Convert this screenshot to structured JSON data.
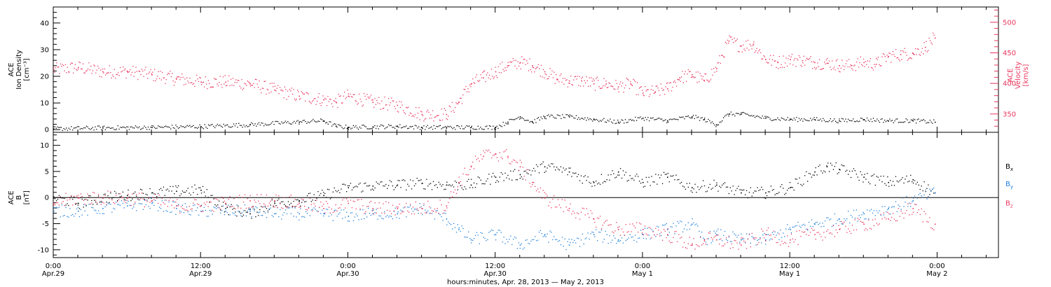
{
  "colors": {
    "black": "#000000",
    "red": "#e8365e",
    "blue": "#1f7fd9"
  },
  "footer_label": "hours:minutes, Apr. 28, 2013 — May  2, 2013",
  "x_ticks": [
    {
      "hour": 0,
      "l1": "0:00",
      "l2": "Apr.29"
    },
    {
      "hour": 12,
      "l1": "12:00",
      "l2": "Apr.29"
    },
    {
      "hour": 24,
      "l1": "0:00",
      "l2": "Apr.30"
    },
    {
      "hour": 36,
      "l1": "12:00",
      "l2": "Apr.30"
    },
    {
      "hour": 48,
      "l1": "0:00",
      "l2": "May 1"
    },
    {
      "hour": 60,
      "l1": "12:00",
      "l2": "May 1"
    },
    {
      "hour": 72,
      "l1": "0:00",
      "l2": "May 2"
    }
  ],
  "chart_data": [
    {
      "type": "scatter",
      "xlim": [
        0,
        77
      ],
      "top": {
        "ylabel_lines": [
          "ACE",
          "Ion Density",
          "[cm⁻³]"
        ],
        "ylim": [
          -1,
          46
        ],
        "yticks": [
          0,
          10,
          20,
          30,
          40
        ],
        "y2label_lines": [
          "ACE",
          "Velocity",
          "[km/s]"
        ],
        "y2lim": [
          320,
          525
        ],
        "y2ticks": [
          350,
          400,
          450,
          500
        ],
        "density_series": {
          "color": "black",
          "x": [
            0,
            4,
            8,
            12,
            16,
            20,
            22,
            23,
            24,
            26,
            28,
            30,
            32,
            34,
            36,
            37,
            38,
            39,
            40,
            42,
            44,
            46,
            48,
            50,
            52,
            53,
            54,
            55,
            56,
            58,
            60,
            62,
            64,
            66,
            68,
            70,
            71.8
          ],
          "y": [
            0.5,
            0.8,
            1,
            1.3,
            2,
            3,
            3.5,
            1.5,
            1,
            1.2,
            1.4,
            1,
            1,
            1,
            1,
            3,
            5,
            3,
            5,
            5,
            4,
            3,
            4.5,
            3.5,
            5,
            4,
            2,
            6,
            6,
            4.5,
            4,
            4,
            3.5,
            4,
            3.5,
            3.5,
            3
          ]
        },
        "velocity_series": {
          "color": "red",
          "x": [
            0,
            2,
            4,
            6,
            8,
            10,
            12,
            14,
            16,
            18,
            20,
            22,
            23,
            24,
            26,
            28,
            30,
            32,
            33,
            34,
            35,
            36,
            37,
            38,
            39,
            40,
            41,
            42,
            43,
            44,
            45,
            46,
            47,
            48,
            49,
            50,
            51,
            52,
            53,
            54,
            55,
            56,
            57,
            58,
            59,
            60,
            61,
            62,
            63,
            64,
            65,
            66,
            67,
            68,
            69,
            70,
            71,
            71.8
          ],
          "y": [
            423,
            427,
            420,
            420,
            415,
            408,
            403,
            403,
            400,
            390,
            380,
            374,
            370,
            380,
            370,
            365,
            350,
            350,
            370,
            400,
            410,
            420,
            430,
            435,
            430,
            420,
            408,
            405,
            405,
            400,
            400,
            395,
            400,
            385,
            387,
            392,
            410,
            415,
            405,
            425,
            470,
            462,
            465,
            440,
            435,
            440,
            438,
            435,
            434,
            430,
            430,
            435,
            432,
            445,
            448,
            450,
            460,
            475
          ]
        }
      },
      "bottom": {
        "ylabel_lines": [
          "ACE",
          "B",
          "[nT]"
        ],
        "ylim": [
          -11.5,
          12.5
        ],
        "yticks": [
          -10,
          -5,
          0,
          5,
          10
        ],
        "series": [
          {
            "name": "Bx",
            "label_main": "B",
            "label_sub": "x",
            "color": "black",
            "x": [
              0,
              2,
              4,
              6,
              8,
              10,
              12,
              14,
              16,
              18,
              20,
              22,
              24,
              26,
              28,
              30,
              32,
              34,
              36,
              38,
              40,
              42,
              44,
              46,
              48,
              50,
              52,
              54,
              56,
              58,
              60,
              62,
              63,
              64,
              66,
              68,
              70,
              71.8
            ],
            "y": [
              0,
              -1,
              0,
              0.5,
              1,
              1.3,
              1.5,
              -2,
              -3,
              -1,
              -0.5,
              0.5,
              2,
              2.3,
              2.5,
              2.8,
              2.5,
              2.5,
              4,
              4.5,
              6,
              5,
              3,
              5,
              3,
              4,
              2,
              2.5,
              1,
              1,
              2,
              5,
              6,
              5.5,
              4,
              3,
              3.5,
              1
            ]
          },
          {
            "name": "By",
            "label_main": "B",
            "label_sub": "y",
            "color": "blue",
            "x": [
              0,
              2,
              4,
              6,
              8,
              10,
              12,
              14,
              16,
              18,
              20,
              22,
              24,
              26,
              28,
              30,
              32,
              33,
              34,
              36,
              38,
              40,
              42,
              44,
              46,
              48,
              50,
              52,
              53,
              54,
              56,
              58,
              60,
              62,
              64,
              66,
              68,
              70,
              71.8
            ],
            "y": [
              -2.5,
              -2.5,
              -2,
              -1.5,
              -1,
              -2,
              -2.5,
              -2.5,
              -2.5,
              -3,
              -3,
              -3,
              -3.5,
              -3,
              -3,
              -2,
              -4,
              -6,
              -8,
              -7,
              -9,
              -7,
              -9,
              -7,
              -8,
              -7,
              -6,
              -5,
              -8,
              -7,
              -8,
              -8,
              -6,
              -5,
              -4,
              -3,
              -2,
              -0.5,
              1
            ]
          },
          {
            "name": "Bz",
            "label_main": "B",
            "label_sub": "z",
            "color": "red",
            "x": [
              0,
              2,
              4,
              6,
              8,
              10,
              12,
              14,
              16,
              18,
              20,
              22,
              24,
              26,
              28,
              30,
              32,
              33,
              34,
              35,
              36,
              37,
              38,
              39,
              40,
              42,
              44,
              46,
              48,
              50,
              52,
              53,
              54,
              56,
              58,
              60,
              62,
              64,
              66,
              68,
              70,
              71.8
            ],
            "y": [
              -1,
              0,
              0,
              0,
              -0.5,
              -1.5,
              -1.5,
              -1,
              -0.5,
              -0.5,
              -1,
              -2,
              -1,
              -2,
              -2,
              -2,
              -1.5,
              3,
              6,
              8,
              8.5,
              8,
              6,
              3,
              0,
              -2,
              -4,
              -6,
              -6,
              -7,
              -9,
              -8,
              -8,
              -9,
              -7,
              -8,
              -7,
              -6,
              -5,
              -4,
              -2,
              -5
            ]
          }
        ]
      }
    }
  ]
}
